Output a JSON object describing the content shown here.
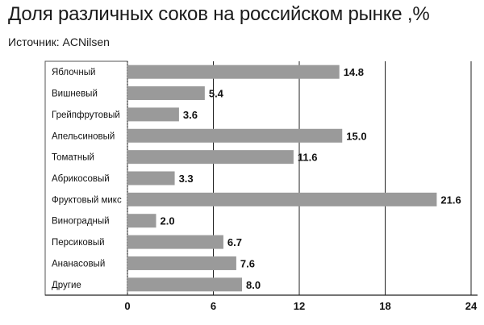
{
  "title": "Доля различных соков на российском рынке ,%",
  "source": "Источник: ACNilsen",
  "chart_data": {
    "type": "bar",
    "orientation": "horizontal",
    "title": "Доля различных соков на российском рынке ,%",
    "categories": [
      "Яблочный",
      "Вишневый",
      "Грейпфрутовый",
      "Апельсиновый",
      "Томатный",
      "Абрикосовый",
      "Фруктовый микс",
      "Виноградный",
      "Персиковый",
      "Ананасовый",
      "Другие"
    ],
    "values": [
      14.8,
      5.4,
      3.6,
      15.0,
      11.6,
      3.3,
      21.6,
      2.0,
      6.7,
      7.6,
      8.0
    ],
    "value_labels": [
      "14.8",
      "5.4",
      "3.6",
      "15.0",
      "11.6",
      "3.3",
      "21.6",
      "2.0",
      "6.7",
      "7.6",
      "8.0"
    ],
    "xlim": [
      0,
      24
    ],
    "xticks": [
      "0",
      "6",
      "12",
      "18",
      "24"
    ],
    "xlabel": "",
    "ylabel": "",
    "grid": true,
    "bar_color": "#9a9a9a"
  }
}
